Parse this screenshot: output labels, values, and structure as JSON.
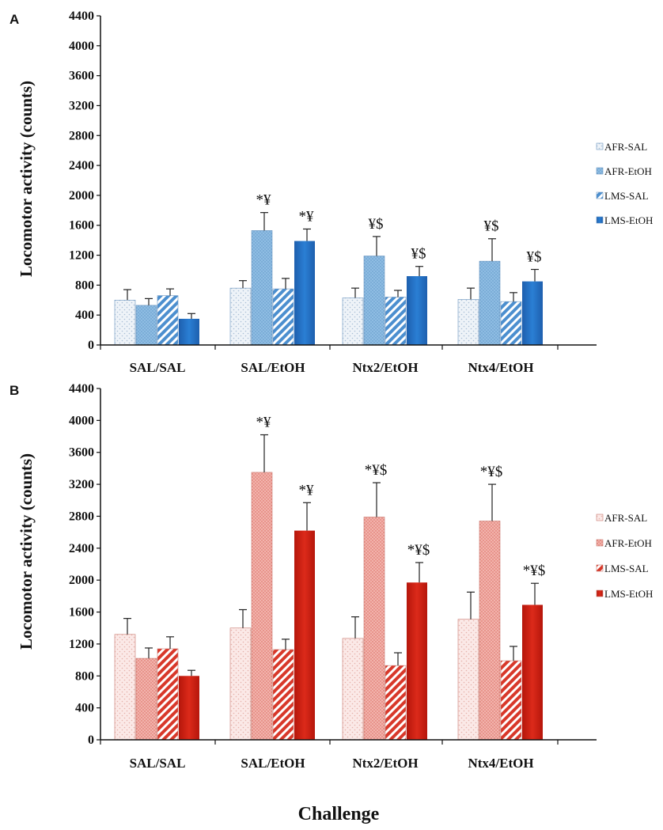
{
  "figure": {
    "xlabel": "Challenge"
  },
  "chart_data": [
    {
      "panel": "A",
      "type": "bar",
      "ylabel": "Locomotor activity (counts)",
      "ylim": [
        0,
        4400
      ],
      "yticks": [
        0,
        400,
        800,
        1200,
        1600,
        2000,
        2400,
        2800,
        3200,
        3600,
        4000,
        4400
      ],
      "categories": [
        "SAL/SAL",
        "SAL/EtOH",
        "Ntx2/EtOH",
        "Ntx4/EtOH"
      ],
      "legend_position": "right",
      "series": [
        {
          "name": "AFR-SAL",
          "values": [
            600,
            760,
            630,
            610
          ],
          "errors": [
            140,
            100,
            130,
            150
          ],
          "labels": [
            "",
            "",
            "",
            ""
          ]
        },
        {
          "name": "AFR-EtOH",
          "values": [
            530,
            1530,
            1190,
            1120
          ],
          "errors": [
            90,
            240,
            260,
            300
          ],
          "labels": [
            "",
            "*¥",
            "¥$",
            "¥$"
          ]
        },
        {
          "name": "LMS-SAL",
          "values": [
            660,
            750,
            640,
            580
          ],
          "errors": [
            90,
            140,
            90,
            120
          ],
          "labels": [
            "",
            "",
            "",
            ""
          ]
        },
        {
          "name": "LMS-EtOH",
          "values": [
            350,
            1390,
            920,
            850
          ],
          "errors": [
            70,
            160,
            130,
            160
          ],
          "labels": [
            "",
            "*¥",
            "¥$",
            "¥$"
          ]
        }
      ]
    },
    {
      "panel": "B",
      "type": "bar",
      "ylabel": "Locomotor activity (counts)",
      "ylim": [
        0,
        4400
      ],
      "yticks": [
        0,
        400,
        800,
        1200,
        1600,
        2000,
        2400,
        2800,
        3200,
        3600,
        4000,
        4400
      ],
      "categories": [
        "SAL/SAL",
        "SAL/EtOH",
        "Ntx2/EtOH",
        "Ntx4/EtOH"
      ],
      "legend_position": "right",
      "series": [
        {
          "name": "AFR-SAL",
          "values": [
            1320,
            1400,
            1270,
            1510
          ],
          "errors": [
            200,
            230,
            270,
            340
          ],
          "labels": [
            "",
            "",
            "",
            ""
          ]
        },
        {
          "name": "AFR-EtOH",
          "values": [
            1020,
            3350,
            2790,
            2740
          ],
          "errors": [
            130,
            470,
            430,
            460
          ],
          "labels": [
            "",
            "*¥",
            "*¥$",
            "*¥$"
          ]
        },
        {
          "name": "LMS-SAL",
          "values": [
            1140,
            1130,
            930,
            990
          ],
          "errors": [
            150,
            130,
            160,
            180
          ],
          "labels": [
            "",
            "",
            "",
            ""
          ]
        },
        {
          "name": "LMS-EtOH",
          "values": [
            800,
            2620,
            1970,
            1690
          ],
          "errors": [
            70,
            350,
            250,
            270
          ],
          "labels": [
            "",
            "*¥",
            "*¥$",
            "*¥$"
          ]
        }
      ]
    }
  ],
  "colors": {
    "panelA": {
      "AFR-SAL": "#eef3f8",
      "AFR-EtOH": "#8fbde3",
      "LMS-SAL": "#5b9bd5",
      "LMS-EtOH": "#1f6fc1"
    },
    "panelB": {
      "AFR-SAL": "#fbe9e7",
      "AFR-EtOH": "#ec9b93",
      "LMS-SAL": "#d8382a",
      "LMS-EtOH": "#c81f12"
    }
  }
}
